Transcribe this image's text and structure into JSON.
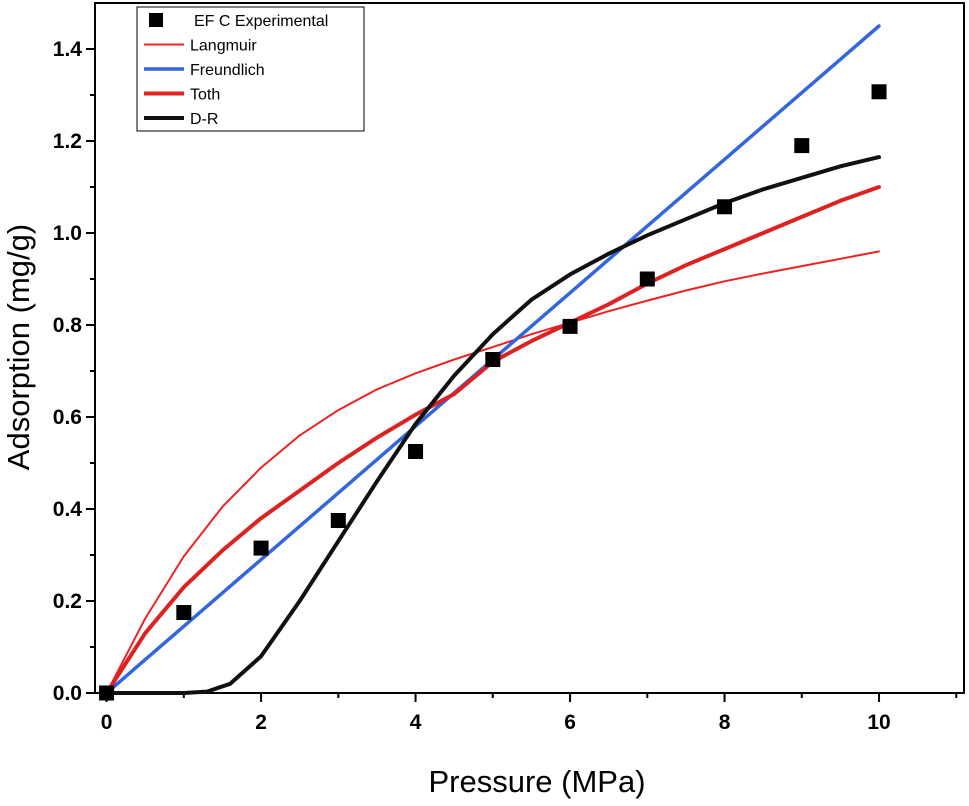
{
  "chart_data": {
    "type": "scatter",
    "xlabel": "Pressure (MPa)",
    "ylabel": "Adsorption (mg/g)",
    "xlim": [
      -0.15,
      11.1
    ],
    "ylim": [
      0,
      1.5
    ],
    "xticks": [
      0,
      2,
      4,
      6,
      8,
      10
    ],
    "xtick_labels": [
      "0",
      "2",
      "4",
      "6",
      "8",
      "10"
    ],
    "yticks": [
      0,
      0.2,
      0.4,
      0.6,
      0.8,
      1.0,
      1.2,
      1.4
    ],
    "ytick_labels": [
      "0.0",
      "0.2",
      "0.4",
      "0.6",
      "0.8",
      "1.0",
      "1.2",
      "1.4"
    ],
    "grid": false,
    "legend_position": "top-left",
    "series": [
      {
        "name": "EF C Experimental",
        "kind": "markers",
        "color": "#000000",
        "x": [
          0,
          1,
          2,
          3,
          4,
          5,
          6,
          7,
          8,
          9,
          10
        ],
        "y": [
          0.0,
          0.175,
          0.315,
          0.375,
          0.525,
          0.725,
          0.797,
          0.9,
          1.057,
          1.19,
          1.307
        ]
      },
      {
        "name": "Langmuir",
        "kind": "line",
        "color": "#ee2222",
        "width": 2,
        "x": [
          0,
          0.5,
          1,
          1.5,
          2,
          2.5,
          3,
          3.5,
          4,
          4.5,
          5,
          5.5,
          6,
          6.5,
          7,
          7.5,
          8,
          8.5,
          9,
          9.5,
          10
        ],
        "y": [
          0,
          0.162,
          0.297,
          0.405,
          0.49,
          0.56,
          0.615,
          0.66,
          0.695,
          0.725,
          0.752,
          0.78,
          0.805,
          0.83,
          0.853,
          0.875,
          0.895,
          0.912,
          0.928,
          0.944,
          0.96
        ]
      },
      {
        "name": "Freundlich",
        "kind": "line",
        "color": "#3366dd",
        "width": 3.5,
        "x": [
          0,
          1,
          2,
          3,
          4,
          5,
          6,
          7,
          8,
          9,
          10
        ],
        "y": [
          0,
          0.145,
          0.29,
          0.435,
          0.58,
          0.725,
          0.87,
          1.015,
          1.16,
          1.305,
          1.45
        ]
      },
      {
        "name": "Toth",
        "kind": "line",
        "color": "#dd2222",
        "width": 4,
        "x": [
          0,
          0.5,
          1,
          1.5,
          2,
          2.5,
          3,
          3.5,
          4,
          4.5,
          5,
          5.5,
          6,
          6.5,
          7,
          7.5,
          8,
          8.5,
          9,
          9.5,
          10
        ],
        "y": [
          0,
          0.13,
          0.23,
          0.31,
          0.38,
          0.44,
          0.5,
          0.555,
          0.605,
          0.65,
          0.72,
          0.765,
          0.805,
          0.845,
          0.89,
          0.93,
          0.965,
          1.0,
          1.035,
          1.07,
          1.1
        ]
      },
      {
        "name": "D-R",
        "kind": "line",
        "color": "#111111",
        "width": 4,
        "x": [
          0,
          0.5,
          1,
          1.3,
          1.6,
          2,
          2.5,
          3,
          3.5,
          4,
          4.5,
          5,
          5.5,
          6,
          6.5,
          7,
          7.5,
          8,
          8.5,
          9,
          9.5,
          10
        ],
        "y": [
          0,
          0,
          0.0,
          0.003,
          0.02,
          0.08,
          0.2,
          0.33,
          0.46,
          0.585,
          0.69,
          0.78,
          0.855,
          0.91,
          0.955,
          0.995,
          1.03,
          1.065,
          1.095,
          1.12,
          1.145,
          1.165
        ]
      }
    ]
  }
}
